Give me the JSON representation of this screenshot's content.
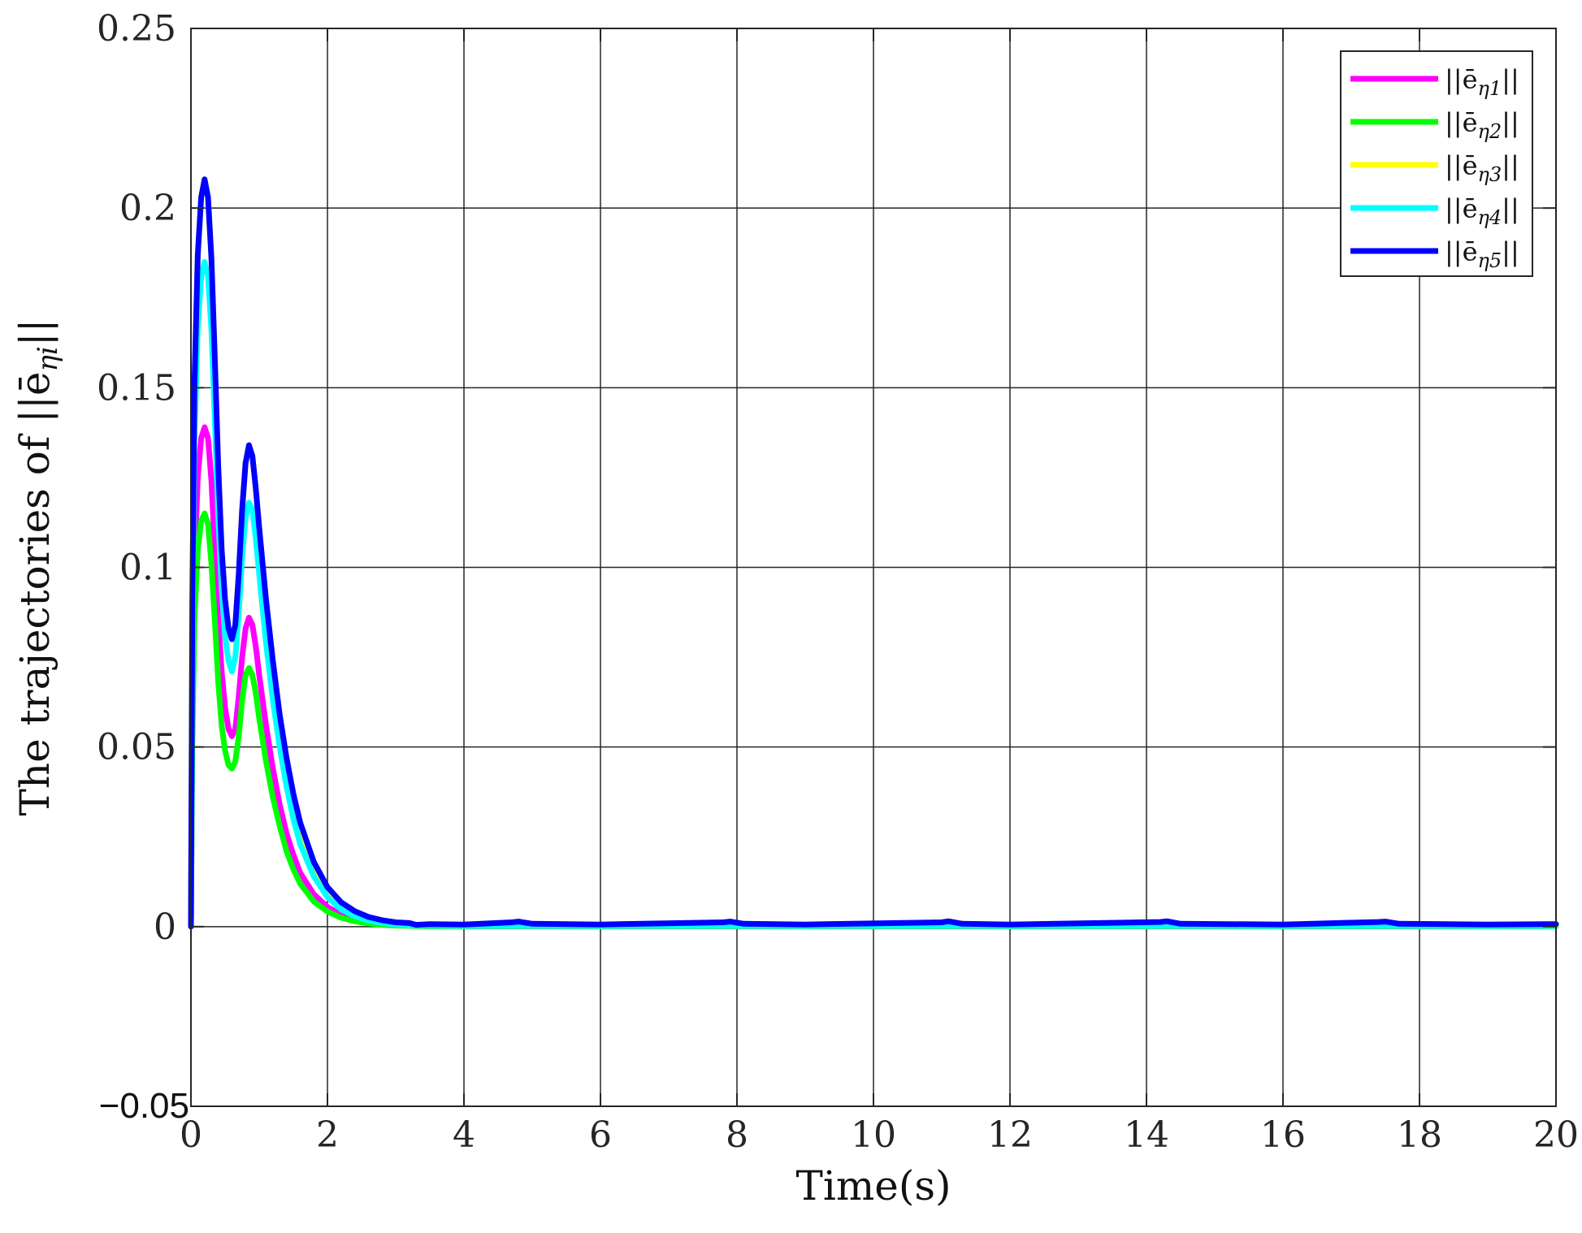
{
  "chart_data": {
    "type": "line",
    "title": "",
    "xlabel": "Time(s)",
    "ylabel": "The trajectories of ||ē",
    "ylabel_sub": "ηi",
    "ylabel_tail": "||",
    "xlim": [
      0,
      20
    ],
    "ylim": [
      -0.05,
      0.25
    ],
    "xticks": [
      0,
      2,
      4,
      6,
      8,
      10,
      12,
      14,
      16,
      18,
      20
    ],
    "xtick_labels": [
      "0",
      "2",
      "4",
      "6",
      "8",
      "10",
      "12",
      "14",
      "16",
      "18",
      "20"
    ],
    "yticks": [
      -0.05,
      0,
      0.05,
      0.1,
      0.15,
      0.2,
      0.25
    ],
    "ytick_labels": [
      "−0.05",
      "0",
      "0.05",
      "0.1",
      "0.15",
      "0.2",
      "0.25"
    ],
    "grid": true,
    "legend_position": "top-right",
    "series": [
      {
        "name": "||ē",
        "sub": "η1",
        "tail": "||",
        "color": "#ff00ff",
        "x": [
          0,
          0.02,
          0.05,
          0.1,
          0.15,
          0.2,
          0.25,
          0.3,
          0.35,
          0.4,
          0.45,
          0.5,
          0.55,
          0.6,
          0.65,
          0.7,
          0.75,
          0.8,
          0.85,
          0.9,
          0.95,
          1.0,
          1.1,
          1.2,
          1.3,
          1.4,
          1.5,
          1.6,
          1.8,
          2.0,
          2.2,
          2.4,
          2.6,
          2.8,
          3.0,
          3.2,
          3.5,
          4.0,
          20.0
        ],
        "y": [
          0,
          0.06,
          0.1,
          0.125,
          0.136,
          0.139,
          0.136,
          0.124,
          0.105,
          0.086,
          0.071,
          0.061,
          0.055,
          0.053,
          0.055,
          0.064,
          0.075,
          0.083,
          0.086,
          0.084,
          0.078,
          0.07,
          0.056,
          0.044,
          0.034,
          0.026,
          0.02,
          0.015,
          0.009,
          0.0055,
          0.0033,
          0.002,
          0.0012,
          0.0007,
          0.0004,
          0.0003,
          0.0002,
          0.0001,
          0.0001
        ]
      },
      {
        "name": "||ē",
        "sub": "η2",
        "tail": "||",
        "color": "#00ff00",
        "x": [
          0,
          0.02,
          0.05,
          0.1,
          0.15,
          0.2,
          0.25,
          0.3,
          0.35,
          0.4,
          0.45,
          0.5,
          0.55,
          0.6,
          0.65,
          0.7,
          0.75,
          0.8,
          0.85,
          0.9,
          0.95,
          1.0,
          1.1,
          1.2,
          1.3,
          1.4,
          1.5,
          1.6,
          1.8,
          2.0,
          2.2,
          2.4,
          2.6,
          2.8,
          3.0,
          3.2,
          3.5,
          4.0,
          20.0
        ],
        "y": [
          0,
          0.05,
          0.085,
          0.105,
          0.113,
          0.115,
          0.112,
          0.101,
          0.085,
          0.068,
          0.056,
          0.049,
          0.045,
          0.044,
          0.046,
          0.053,
          0.063,
          0.07,
          0.072,
          0.07,
          0.065,
          0.058,
          0.046,
          0.036,
          0.028,
          0.021,
          0.016,
          0.012,
          0.007,
          0.0042,
          0.0025,
          0.0015,
          0.0009,
          0.0005,
          0.0003,
          0.0002,
          0.0001,
          0.0001,
          0.0001
        ]
      },
      {
        "name": "||ē",
        "sub": "η3",
        "tail": "||",
        "color": "#ffff00",
        "x": [
          0,
          0.02,
          0.05,
          0.1,
          0.15,
          0.2,
          0.25,
          0.3,
          0.35,
          0.4,
          0.45,
          0.5,
          0.55,
          0.6,
          0.65,
          0.7,
          0.75,
          0.8,
          0.85,
          0.9,
          0.95,
          1.0,
          1.1,
          1.2,
          1.3,
          1.4,
          1.5,
          1.6,
          1.8,
          2.0,
          2.2,
          2.4,
          2.6,
          2.8,
          3.0,
          3.2,
          3.5,
          4.0,
          20.0
        ],
        "y": [
          0,
          0.09,
          0.15,
          0.187,
          0.203,
          0.208,
          0.203,
          0.186,
          0.158,
          0.128,
          0.105,
          0.091,
          0.083,
          0.08,
          0.084,
          0.098,
          0.116,
          0.129,
          0.134,
          0.131,
          0.122,
          0.111,
          0.09,
          0.072,
          0.057,
          0.045,
          0.035,
          0.027,
          0.016,
          0.0095,
          0.0056,
          0.0034,
          0.002,
          0.0012,
          0.0007,
          0.0005,
          0.0003,
          0.0002,
          0.0002
        ]
      },
      {
        "name": "||ē",
        "sub": "η4",
        "tail": "||",
        "color": "#00ffff",
        "x": [
          0,
          0.02,
          0.05,
          0.1,
          0.15,
          0.2,
          0.25,
          0.3,
          0.35,
          0.4,
          0.45,
          0.5,
          0.55,
          0.6,
          0.65,
          0.7,
          0.75,
          0.8,
          0.85,
          0.9,
          0.95,
          1.0,
          1.1,
          1.2,
          1.3,
          1.4,
          1.5,
          1.6,
          1.8,
          2.0,
          2.2,
          2.4,
          2.6,
          2.8,
          3.0,
          3.2,
          3.5,
          4.0,
          20.0
        ],
        "y": [
          0,
          0.08,
          0.135,
          0.167,
          0.181,
          0.185,
          0.181,
          0.166,
          0.141,
          0.114,
          0.094,
          0.081,
          0.074,
          0.071,
          0.075,
          0.087,
          0.103,
          0.114,
          0.118,
          0.116,
          0.108,
          0.098,
          0.079,
          0.063,
          0.05,
          0.039,
          0.03,
          0.023,
          0.014,
          0.0082,
          0.0048,
          0.0029,
          0.0017,
          0.001,
          0.0006,
          0.0004,
          0.0003,
          0.0002,
          0.0002
        ]
      },
      {
        "name": "||ē",
        "sub": "η5",
        "tail": "||",
        "color": "#0000ff",
        "x": [
          0,
          0.02,
          0.05,
          0.1,
          0.15,
          0.2,
          0.25,
          0.3,
          0.35,
          0.4,
          0.45,
          0.5,
          0.55,
          0.6,
          0.65,
          0.7,
          0.75,
          0.8,
          0.85,
          0.9,
          0.95,
          1.0,
          1.1,
          1.2,
          1.3,
          1.4,
          1.5,
          1.6,
          1.8,
          2.0,
          2.2,
          2.4,
          2.6,
          2.8,
          3.0,
          3.2,
          3.3,
          3.5,
          4.0,
          4.7,
          4.8,
          5.0,
          6.0,
          7.8,
          7.9,
          8.1,
          9.0,
          11.0,
          11.1,
          11.3,
          12.0,
          14.2,
          14.3,
          14.5,
          16.0,
          17.4,
          17.5,
          17.7,
          19.0,
          20.0
        ],
        "y": [
          0,
          0.09,
          0.15,
          0.187,
          0.203,
          0.208,
          0.203,
          0.186,
          0.158,
          0.128,
          0.105,
          0.091,
          0.083,
          0.08,
          0.084,
          0.098,
          0.116,
          0.129,
          0.134,
          0.131,
          0.122,
          0.111,
          0.091,
          0.074,
          0.059,
          0.047,
          0.037,
          0.029,
          0.018,
          0.011,
          0.0068,
          0.0043,
          0.0027,
          0.0018,
          0.0012,
          0.001,
          0.0005,
          0.0007,
          0.0006,
          0.0012,
          0.0014,
          0.0008,
          0.0006,
          0.0012,
          0.0014,
          0.0008,
          0.0006,
          0.0012,
          0.0015,
          0.0008,
          0.0006,
          0.0013,
          0.0015,
          0.0008,
          0.0006,
          0.0013,
          0.0014,
          0.0008,
          0.0006,
          0.0007
        ]
      }
    ]
  }
}
